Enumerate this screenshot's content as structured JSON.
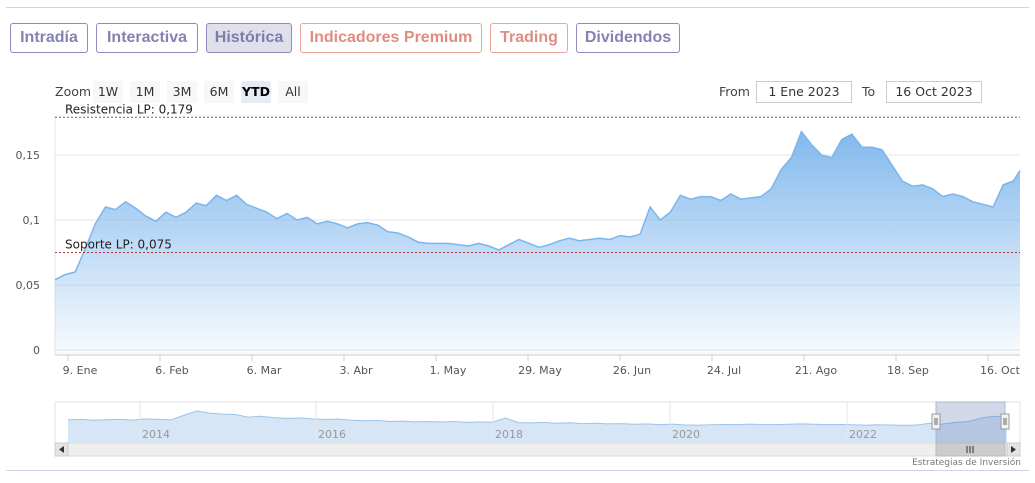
{
  "tabs": [
    {
      "label": "Intradía",
      "state": "normal"
    },
    {
      "label": "Interactiva",
      "state": "normal"
    },
    {
      "label": "Histórica",
      "state": "active"
    },
    {
      "label": "Indicadores Premium",
      "state": "premium"
    },
    {
      "label": "Trading",
      "state": "premium"
    },
    {
      "label": "Dividendos",
      "state": "normal"
    }
  ],
  "zoom": {
    "label": "Zoom",
    "buttons": [
      "1W",
      "1M",
      "3M",
      "6M",
      "YTD",
      "All"
    ],
    "selected": "YTD"
  },
  "range": {
    "from_label": "From",
    "from_value": "1 Ene 2023",
    "to_label": "To",
    "to_value": "16 Oct 2023"
  },
  "chart_data": {
    "type": "area",
    "title": "",
    "xlabel": "",
    "ylabel": "",
    "ylim": [
      0,
      0.18
    ],
    "y_ticks": [
      0,
      0.05,
      0.1,
      0.15
    ],
    "y_tick_labels": [
      "0",
      "0,05",
      "0,1",
      "0,15"
    ],
    "x_tick_labels": [
      "9. Ene",
      "6. Feb",
      "6. Mar",
      "3. Abr",
      "1. May",
      "29. May",
      "26. Jun",
      "24. Jul",
      "21. Ago",
      "18. Sep",
      "16. Oct"
    ],
    "series": [
      {
        "color": "#7cb5ec",
        "x": [
          "2023-01-02",
          "2023-01-05",
          "2023-01-08",
          "2023-01-11",
          "2023-01-14",
          "2023-01-17",
          "2023-01-20",
          "2023-01-23",
          "2023-01-26",
          "2023-01-29",
          "2023-02-01",
          "2023-02-04",
          "2023-02-07",
          "2023-02-10",
          "2023-02-13",
          "2023-02-16",
          "2023-02-19",
          "2023-02-22",
          "2023-02-25",
          "2023-02-28",
          "2023-03-03",
          "2023-03-06",
          "2023-03-09",
          "2023-03-12",
          "2023-03-15",
          "2023-03-18",
          "2023-03-21",
          "2023-03-24",
          "2023-03-27",
          "2023-03-30",
          "2023-04-02",
          "2023-04-05",
          "2023-04-08",
          "2023-04-11",
          "2023-04-14",
          "2023-04-17",
          "2023-04-20",
          "2023-04-23",
          "2023-04-26",
          "2023-04-29",
          "2023-05-02",
          "2023-05-05",
          "2023-05-08",
          "2023-05-11",
          "2023-05-14",
          "2023-05-17",
          "2023-05-20",
          "2023-05-23",
          "2023-05-26",
          "2023-05-29",
          "2023-06-01",
          "2023-06-04",
          "2023-06-07",
          "2023-06-10",
          "2023-06-13",
          "2023-06-16",
          "2023-06-19",
          "2023-06-22",
          "2023-06-25",
          "2023-06-28",
          "2023-07-01",
          "2023-07-04",
          "2023-07-07",
          "2023-07-10",
          "2023-07-13",
          "2023-07-16",
          "2023-07-19",
          "2023-07-22",
          "2023-07-25",
          "2023-07-28",
          "2023-07-31",
          "2023-08-03",
          "2023-08-06",
          "2023-08-09",
          "2023-08-12",
          "2023-08-15",
          "2023-08-18",
          "2023-08-21",
          "2023-08-24",
          "2023-08-27",
          "2023-08-30",
          "2023-09-02",
          "2023-09-05",
          "2023-09-08",
          "2023-09-11",
          "2023-09-14",
          "2023-09-17",
          "2023-09-20",
          "2023-09-23",
          "2023-09-26",
          "2023-09-29",
          "2023-10-02",
          "2023-10-05",
          "2023-10-08",
          "2023-10-11",
          "2023-10-14",
          "2023-10-16"
        ],
        "values": [
          0.054,
          0.058,
          0.06,
          0.078,
          0.097,
          0.11,
          0.108,
          0.114,
          0.109,
          0.103,
          0.099,
          0.106,
          0.102,
          0.106,
          0.113,
          0.111,
          0.119,
          0.115,
          0.119,
          0.112,
          0.109,
          0.106,
          0.101,
          0.105,
          0.1,
          0.102,
          0.097,
          0.099,
          0.097,
          0.094,
          0.097,
          0.098,
          0.096,
          0.091,
          0.09,
          0.087,
          0.083,
          0.082,
          0.082,
          0.082,
          0.081,
          0.08,
          0.082,
          0.08,
          0.077,
          0.081,
          0.085,
          0.082,
          0.079,
          0.081,
          0.084,
          0.086,
          0.084,
          0.085,
          0.086,
          0.085,
          0.088,
          0.087,
          0.089,
          0.11,
          0.1,
          0.106,
          0.119,
          0.116,
          0.118,
          0.118,
          0.115,
          0.12,
          0.116,
          0.117,
          0.118,
          0.124,
          0.139,
          0.148,
          0.168,
          0.158,
          0.15,
          0.148,
          0.162,
          0.166,
          0.156,
          0.156,
          0.154,
          0.142,
          0.13,
          0.126,
          0.127,
          0.124,
          0.118,
          0.12,
          0.118,
          0.114,
          0.112,
          0.11,
          0.127,
          0.13,
          0.138
        ]
      }
    ],
    "plot_lines": [
      {
        "label": "Resistencia LP: 0,179",
        "value": 0.179,
        "color": "#2e8b3a",
        "style": "dashed"
      },
      {
        "label": "Soporte LP: 0,075",
        "value": 0.075,
        "color": "#b0323c",
        "style": "dashed"
      }
    ],
    "navigator": {
      "x_labels": [
        "2014",
        "2016",
        "2018",
        "2020",
        "2022"
      ],
      "series_values": [
        0.11,
        0.112,
        0.107,
        0.11,
        0.113,
        0.108,
        0.115,
        0.112,
        0.11,
        0.135,
        0.16,
        0.148,
        0.142,
        0.14,
        0.125,
        0.13,
        0.122,
        0.118,
        0.12,
        0.115,
        0.112,
        0.114,
        0.108,
        0.104,
        0.106,
        0.1,
        0.102,
        0.098,
        0.1,
        0.097,
        0.1,
        0.095,
        0.098,
        0.096,
        0.12,
        0.094,
        0.092,
        0.095,
        0.09,
        0.093,
        0.088,
        0.09,
        0.086,
        0.088,
        0.084,
        0.086,
        0.082,
        0.085,
        0.08,
        0.079,
        0.081,
        0.083,
        0.082,
        0.085,
        0.083,
        0.082,
        0.084,
        0.086,
        0.084,
        0.082,
        0.083,
        0.081,
        0.079,
        0.081,
        0.08,
        0.078,
        0.08,
        0.09,
        0.085,
        0.095,
        0.1,
        0.12,
        0.13,
        0.125
      ]
    },
    "grid": true,
    "legend": "none"
  },
  "credit": "Estrategias de Inversión"
}
